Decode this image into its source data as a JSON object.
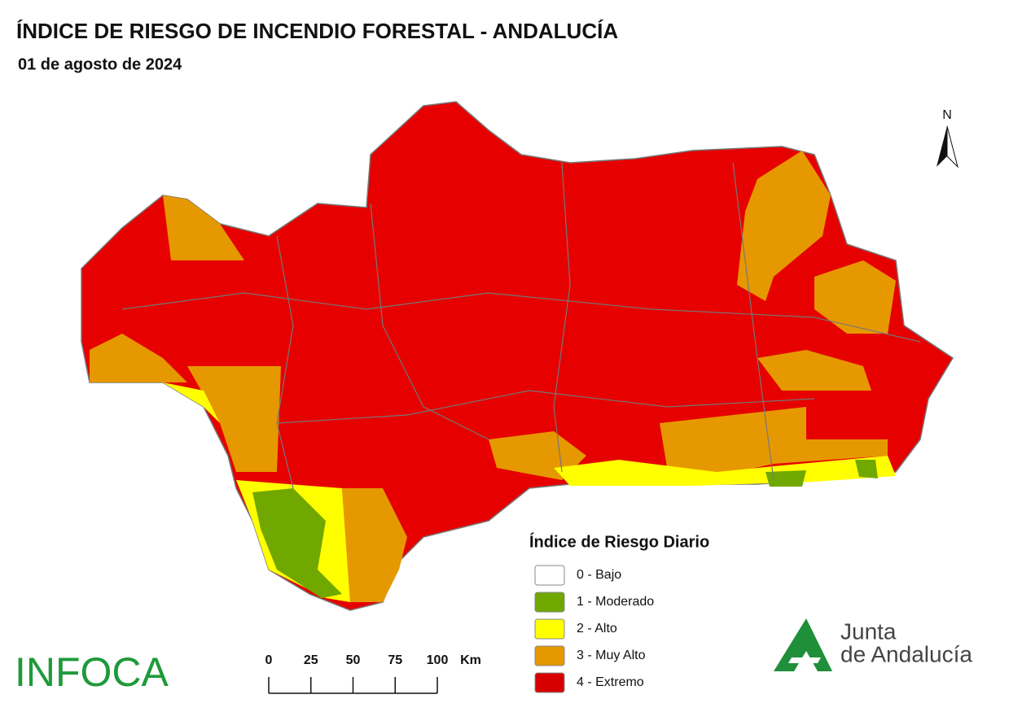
{
  "title": "ÍNDICE DE RIESGO DE INCENDIO FORESTAL - ANDALUCÍA",
  "date": "01 de agosto de 2024",
  "north": "N",
  "legend": {
    "title": "Índice de Riesgo Diario",
    "items": [
      {
        "label": "0 - Bajo",
        "color": "#ffffff"
      },
      {
        "label": "1 - Moderado",
        "color": "#70a800"
      },
      {
        "label": "2 - Alto",
        "color": "#ffff00"
      },
      {
        "label": "3 - Muy Alto",
        "color": "#e69800"
      },
      {
        "label": "4 - Extremo",
        "color": "#d70000"
      }
    ]
  },
  "scale": {
    "ticks": [
      "0",
      "25",
      "50",
      "75",
      "100"
    ],
    "unit": "Km"
  },
  "infoca": "INFOCA",
  "junta": [
    "Junta",
    "de Andalucía"
  ]
}
